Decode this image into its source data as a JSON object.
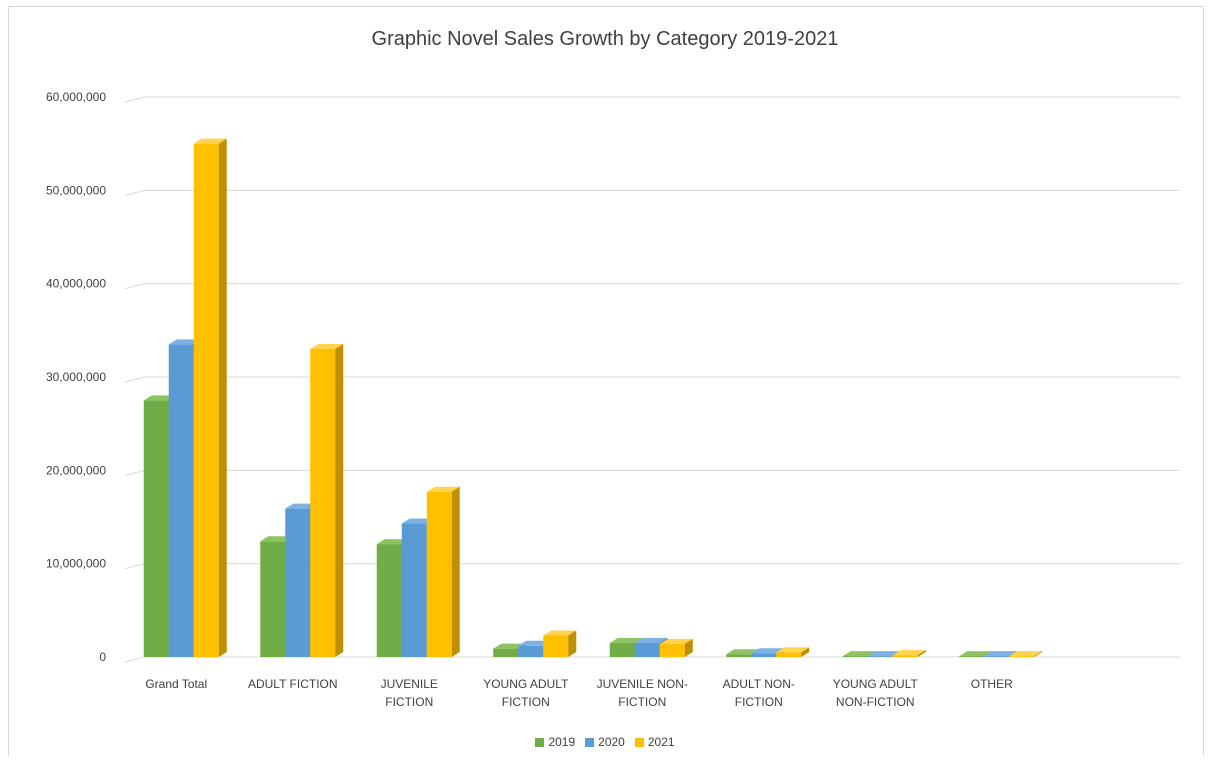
{
  "chart_data": {
    "type": "bar",
    "title": "Graphic Novel Sales Growth by Category 2019-2021",
    "xlabel": "",
    "ylabel": "",
    "ylim": [
      0,
      60000000
    ],
    "yticks": [
      0,
      10000000,
      20000000,
      30000000,
      40000000,
      50000000,
      60000000
    ],
    "ytick_labels": [
      "0",
      "10,000,000",
      "20,000,000",
      "30,000,000",
      "40,000,000",
      "50,000,000",
      "60,000,000"
    ],
    "categories": [
      [
        "Grand Total"
      ],
      [
        "ADULT FICTION"
      ],
      [
        "JUVENILE",
        "FICTION"
      ],
      [
        "YOUNG ADULT",
        "FICTION"
      ],
      [
        "JUVENILE NON-",
        "FICTION"
      ],
      [
        "ADULT NON-",
        "FICTION"
      ],
      [
        "YOUNG ADULT",
        "NON-FICTION"
      ],
      [
        "OTHER"
      ]
    ],
    "series": [
      {
        "name": "2019",
        "color": "#70ad47",
        "side": "#4e7a31",
        "top": "#8fc463",
        "values": [
          27500000,
          12400000,
          12100000,
          900000,
          1500000,
          300000,
          100000,
          100000
        ]
      },
      {
        "name": "2020",
        "color": "#5b9bd5",
        "side": "#3f73a3",
        "top": "#7cb2e3",
        "values": [
          33500000,
          15900000,
          14300000,
          1200000,
          1500000,
          400000,
          100000,
          100000
        ]
      },
      {
        "name": "2021",
        "color": "#ffc000",
        "side": "#bf8f00",
        "top": "#ffd34d",
        "values": [
          55000000,
          33000000,
          17700000,
          2300000,
          1400000,
          500000,
          200000,
          100000
        ]
      }
    ],
    "grid": true,
    "legend_position": "bottom"
  }
}
